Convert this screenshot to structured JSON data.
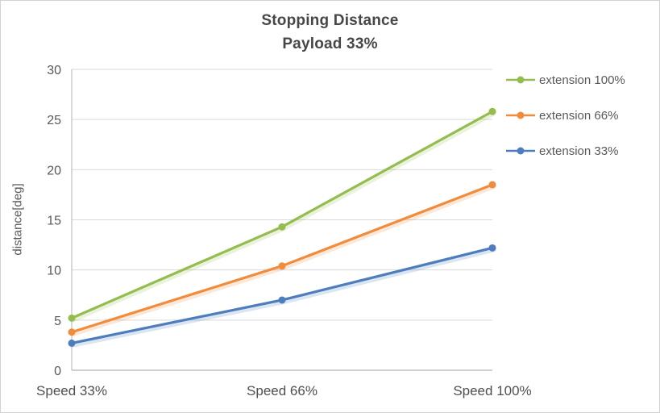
{
  "chart_data": {
    "type": "line",
    "title": "Stopping Distance",
    "subtitle": "Payload 33%",
    "categories": [
      "Speed 33%",
      "Speed 66%",
      "Speed 100%"
    ],
    "series": [
      {
        "name": "extension 100%",
        "color": "#94BD4F",
        "values": [
          5.2,
          14.3,
          25.8
        ]
      },
      {
        "name": "extension 66%",
        "color": "#F08C3C",
        "values": [
          3.8,
          10.4,
          18.5
        ]
      },
      {
        "name": "extension 33%",
        "color": "#4E7DBE",
        "values": [
          2.7,
          7.0,
          12.2
        ]
      }
    ],
    "xlabel": "",
    "ylabel": "distance[deg]",
    "ylim": [
      0,
      30
    ],
    "ytick_step": 5,
    "grid": true,
    "legend_position": "right"
  },
  "colors": {
    "grid": "#d9d9d9",
    "axis": "#b3b3b3",
    "tick_text": "#595959",
    "title_text": "#474747",
    "background": "#ffffff",
    "border": "#d2d2d2"
  }
}
